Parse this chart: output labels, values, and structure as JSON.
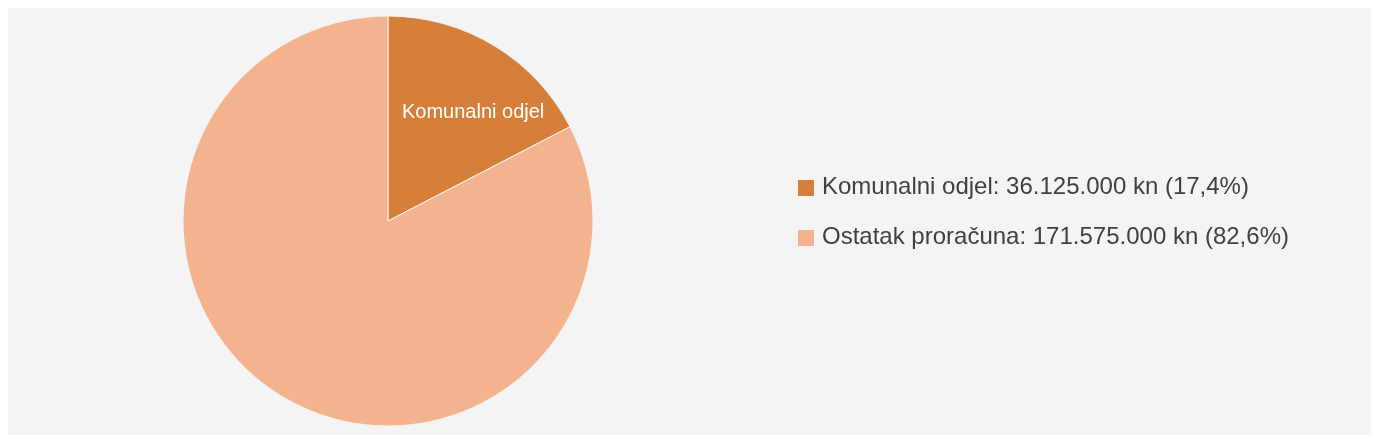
{
  "chart_data": {
    "type": "pie",
    "categories": [
      "Komunalni odjel",
      "Ostatak proračuna"
    ],
    "values": [
      36125000,
      171575000
    ],
    "colors": [
      "#d67f3b",
      "#f3b38e"
    ],
    "value_labels": [
      ": 36.125.000 kn (17,4%)",
      ": 171.575.000 kn (82,6%)"
    ],
    "annotations": [
      {
        "text": "Komunalni odjel",
        "x": "Komunalni odjel"
      }
    ],
    "legend": "right"
  }
}
